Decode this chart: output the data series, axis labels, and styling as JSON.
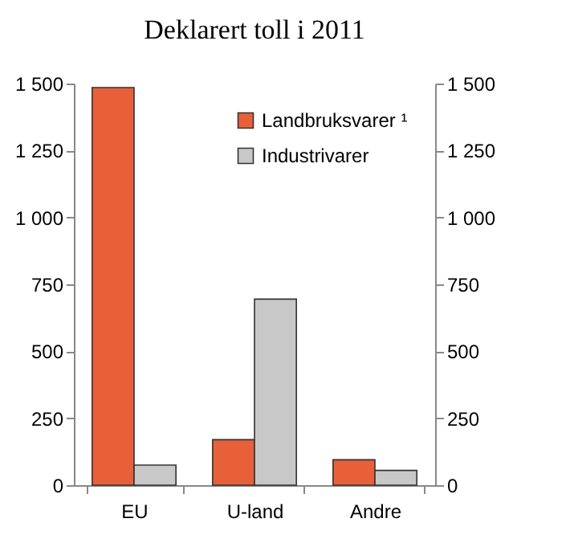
{
  "chart_data": {
    "type": "bar",
    "title": "Deklarert toll i 2011",
    "categories": [
      "EU",
      "U-land",
      "Andre"
    ],
    "series": [
      {
        "name": "Landbruksvarer ¹",
        "color": "#e8603a",
        "values": [
          1485,
          170,
          95
        ]
      },
      {
        "name": "Industrivarer",
        "color": "#c8c8c8",
        "values": [
          75,
          695,
          55
        ],
        "axis": "y2"
      }
    ],
    "ylim": [
      0,
      1500
    ],
    "yticks": [
      0,
      250,
      500,
      750,
      {
        "value": 1000,
        "label": "1 000"
      },
      {
        "value": 1250,
        "label": "1 250"
      },
      {
        "value": 1500,
        "label": "1 500"
      }
    ],
    "y2lim": [
      0,
      1500
    ],
    "y2ticks": [
      0,
      250,
      500,
      750,
      {
        "value": 1000,
        "label": "1 000"
      },
      {
        "value": 1250,
        "label": "1 250"
      },
      {
        "value": 1500,
        "label": "1 500"
      }
    ],
    "legend": "top right",
    "grid": false
  }
}
